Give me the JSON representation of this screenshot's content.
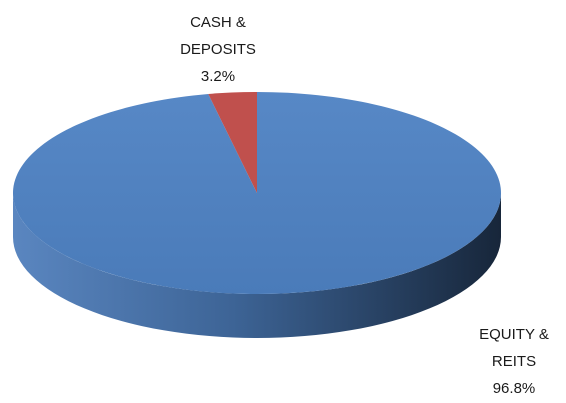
{
  "chart_data": {
    "type": "pie",
    "title": "",
    "style": "3d",
    "slices": [
      {
        "name_lines": [
          "EQUITY &",
          "REITS"
        ],
        "pct_label": "96.8%",
        "value": 96.8,
        "color": "#4f81bd"
      },
      {
        "name_lines": [
          "CASH &",
          "DEPOSITS"
        ],
        "pct_label": "3.2%",
        "value": 3.2,
        "color": "#c0504d"
      }
    ]
  }
}
